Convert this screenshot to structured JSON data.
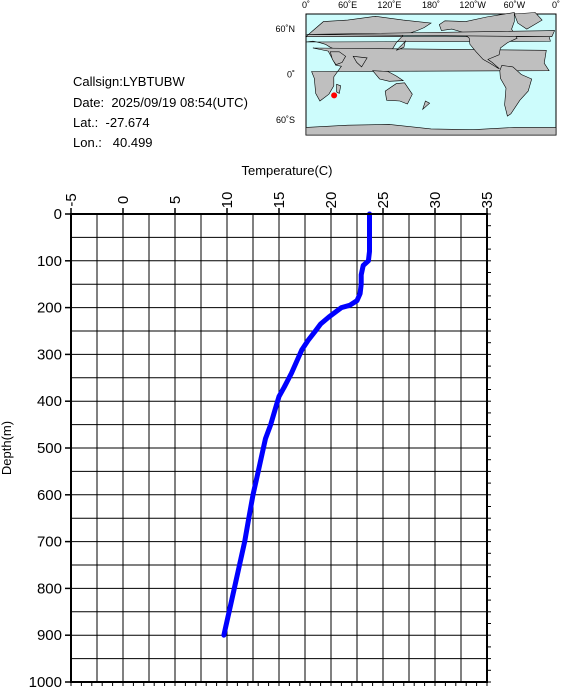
{
  "meta": {
    "callsign_label": "Callsign:",
    "callsign": "LYBTUBW",
    "date_label": "Date:",
    "date": "2025/09/19 08:54(UTC)",
    "lat_label": "Lat.:",
    "lat": "-27.674",
    "lon_label": "Lon.:",
    "lon": "40.499"
  },
  "map": {
    "top_labels": [
      "0˚",
      "60˚E",
      "120˚E",
      "180˚",
      "120˚W",
      "60˚W",
      "0˚"
    ],
    "left_labels": [
      "60˚N",
      "0˚",
      "60˚S"
    ],
    "marker": {
      "lon": 40.499,
      "lat": -27.674
    },
    "colors": {
      "ocean": "#cdfcfc",
      "land": "#bfbfbf",
      "marker": "#ff0000"
    }
  },
  "chart_data": {
    "type": "line",
    "xlabel": "Temperature(C)",
    "ylabel": "Depth(m)",
    "xlim": [
      -5,
      35
    ],
    "ylim": [
      0,
      1000
    ],
    "y_inverted": true,
    "x_ticks": [
      "-5",
      "0",
      "5",
      "10",
      "15",
      "20",
      "25",
      "30",
      "35"
    ],
    "y_ticks": [
      "0",
      "100",
      "200",
      "300",
      "400",
      "500",
      "600",
      "700",
      "800",
      "900",
      "1000"
    ],
    "grid": true,
    "series": [
      {
        "color": "#0000ff",
        "points": [
          [
            23.7,
            0
          ],
          [
            23.7,
            20
          ],
          [
            23.7,
            50
          ],
          [
            23.7,
            80
          ],
          [
            23.6,
            100
          ],
          [
            23.1,
            110
          ],
          [
            22.9,
            130
          ],
          [
            22.9,
            150
          ],
          [
            22.8,
            170
          ],
          [
            22.5,
            185
          ],
          [
            21.8,
            195
          ],
          [
            21.0,
            200
          ],
          [
            20.4,
            210
          ],
          [
            19.8,
            220
          ],
          [
            19.0,
            235
          ],
          [
            18.5,
            250
          ],
          [
            17.8,
            270
          ],
          [
            17.2,
            290
          ],
          [
            16.8,
            310
          ],
          [
            16.2,
            340
          ],
          [
            15.5,
            370
          ],
          [
            15.0,
            390
          ],
          [
            14.6,
            420
          ],
          [
            14.2,
            450
          ],
          [
            13.7,
            480
          ],
          [
            13.3,
            520
          ],
          [
            12.9,
            560
          ],
          [
            12.5,
            600
          ],
          [
            12.1,
            650
          ],
          [
            11.7,
            700
          ],
          [
            11.2,
            750
          ],
          [
            10.7,
            800
          ],
          [
            10.2,
            850
          ],
          [
            9.8,
            890
          ],
          [
            9.7,
            900
          ]
        ]
      }
    ]
  }
}
